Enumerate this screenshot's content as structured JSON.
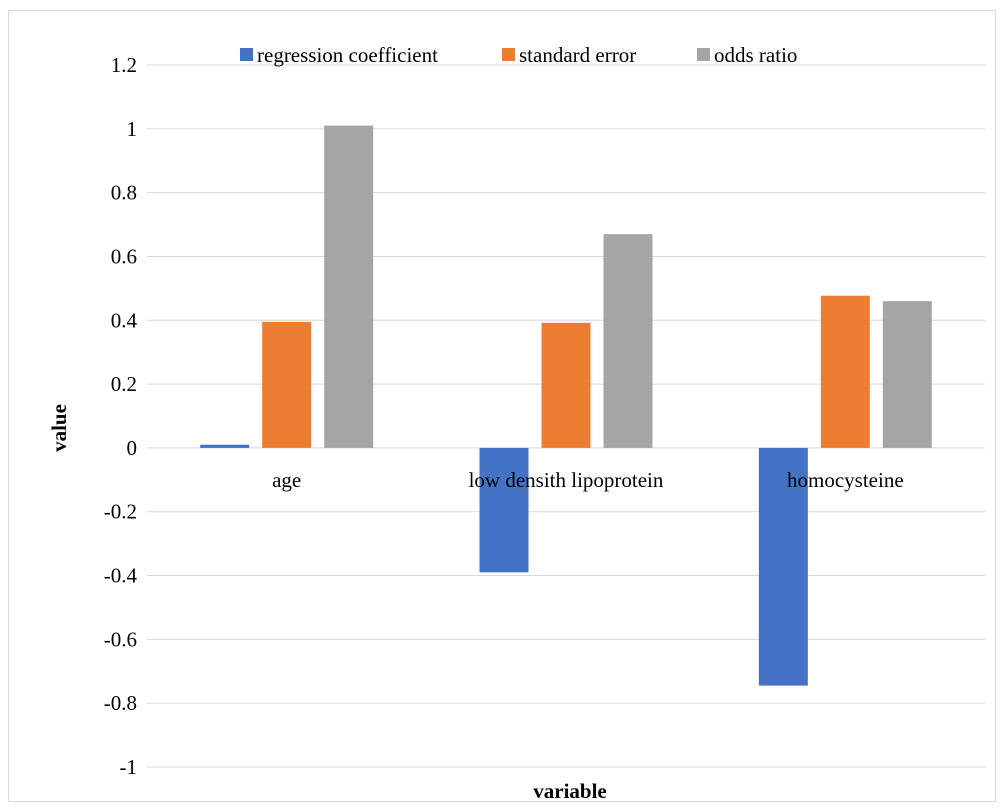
{
  "chart_data": {
    "type": "bar",
    "categories": [
      "age",
      "low densith lipoprotein",
      "homocysteine"
    ],
    "series": [
      {
        "name": "regression coefficient",
        "color": "#4472c4",
        "values": [
          0.01,
          -0.39,
          -0.745
        ]
      },
      {
        "name": "standard error",
        "color": "#ed7d31",
        "values": [
          0.395,
          0.392,
          0.477
        ]
      },
      {
        "name": "odds ratio",
        "color": "#a5a5a5",
        "values": [
          1.01,
          0.67,
          0.46
        ]
      }
    ],
    "title": "",
    "xlabel": "variable",
    "ylabel": "value",
    "ylim": [
      -1,
      1.2
    ],
    "yticks": [
      "1.2",
      "1",
      "0.8",
      "0.6",
      "0.4",
      "0.2",
      "0",
      "-0.2",
      "-0.4",
      "-0.6",
      "-0.8",
      "-1"
    ],
    "grid": true,
    "legend_position": "top",
    "gridline_color": "#d9d9d9"
  }
}
